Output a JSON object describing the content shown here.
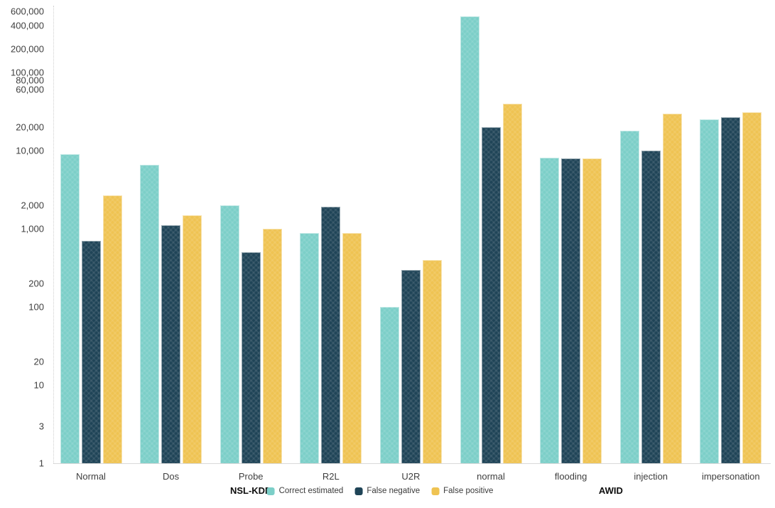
{
  "chart_data": {
    "type": "bar",
    "y_scale": "log",
    "title": "",
    "xlabel": "",
    "ylabel": "",
    "grid": false,
    "legend_position": "bottom-center",
    "ylim": [
      1,
      700000
    ],
    "y_ticks": [
      600000,
      400000,
      200000,
      100000,
      80000,
      60000,
      20000,
      10000,
      2000,
      1000,
      200,
      100,
      20,
      10,
      3,
      1
    ],
    "categories": [
      "Normal",
      "Dos",
      "Probe",
      "R2L",
      "U2R",
      "normal",
      "flooding",
      "injection",
      "impersonation"
    ],
    "dataset_groups": [
      {
        "label": "NSL-KDD",
        "category_start": 0,
        "category_end": 4
      },
      {
        "label": "AWID",
        "category_start": 5,
        "category_end": 8
      }
    ],
    "series": [
      {
        "name": "Correct estimated",
        "color": "#7CCFC8",
        "values": [
          9000,
          6600,
          2000,
          880,
          100,
          520000,
          8100,
          18000,
          25000
        ]
      },
      {
        "name": "False negative",
        "color": "#1F4457",
        "values": [
          700,
          1100,
          500,
          1900,
          300,
          20000,
          8000,
          10000,
          27000
        ]
      },
      {
        "name": "False positive",
        "color": "#EFC352",
        "values": [
          2700,
          1500,
          1000,
          890,
          400,
          40000,
          8000,
          30000,
          31000
        ]
      }
    ]
  },
  "style_colors": {
    "axis_text": "#3f3f3f",
    "dataset_label_text": "#0d0d0d",
    "legend_text": "#3a3a3a",
    "axis_line": "#cfcfcf",
    "baseline": "#d9d9d9",
    "background": "#ffffff"
  }
}
